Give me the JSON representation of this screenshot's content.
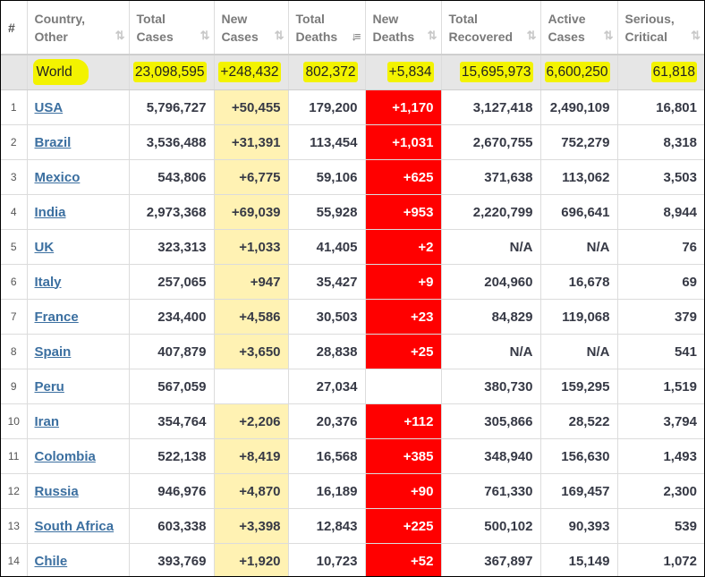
{
  "headers": [
    {
      "label": "#",
      "sortable": false
    },
    {
      "label": "Country,\nOther",
      "sortable": true
    },
    {
      "label": "Total\nCases",
      "sortable": true
    },
    {
      "label": "New\nCases",
      "sortable": true
    },
    {
      "label": "Total\nDeaths",
      "sortable": true,
      "active": true
    },
    {
      "label": "New\nDeaths",
      "sortable": true
    },
    {
      "label": "Total\nRecovered",
      "sortable": true
    },
    {
      "label": "Active\nCases",
      "sortable": true
    },
    {
      "label": "Serious,\nCritical",
      "sortable": true
    }
  ],
  "sort_icon": "⇅",
  "sort_icon_active": "↓≡",
  "world": {
    "country": "World",
    "total_cases": "23,098,595",
    "new_cases": "+248,432",
    "total_deaths": "802,372",
    "new_deaths": "+5,834",
    "total_recovered": "15,695,973",
    "active_cases": "6,600,250",
    "serious_critical": "61,818"
  },
  "rows": [
    {
      "rank": "1",
      "country": "USA",
      "total_cases": "5,796,727",
      "new_cases": "+50,455",
      "total_deaths": "179,200",
      "new_deaths": "+1,170",
      "total_recovered": "3,127,418",
      "active_cases": "2,490,109",
      "serious_critical": "16,801"
    },
    {
      "rank": "2",
      "country": "Brazil",
      "total_cases": "3,536,488",
      "new_cases": "+31,391",
      "total_deaths": "113,454",
      "new_deaths": "+1,031",
      "total_recovered": "2,670,755",
      "active_cases": "752,279",
      "serious_critical": "8,318"
    },
    {
      "rank": "3",
      "country": "Mexico",
      "total_cases": "543,806",
      "new_cases": "+6,775",
      "total_deaths": "59,106",
      "new_deaths": "+625",
      "total_recovered": "371,638",
      "active_cases": "113,062",
      "serious_critical": "3,503"
    },
    {
      "rank": "4",
      "country": "India",
      "total_cases": "2,973,368",
      "new_cases": "+69,039",
      "total_deaths": "55,928",
      "new_deaths": "+953",
      "total_recovered": "2,220,799",
      "active_cases": "696,641",
      "serious_critical": "8,944"
    },
    {
      "rank": "5",
      "country": "UK",
      "total_cases": "323,313",
      "new_cases": "+1,033",
      "total_deaths": "41,405",
      "new_deaths": "+2",
      "total_recovered": "N/A",
      "active_cases": "N/A",
      "serious_critical": "76"
    },
    {
      "rank": "6",
      "country": "Italy",
      "total_cases": "257,065",
      "new_cases": "+947",
      "total_deaths": "35,427",
      "new_deaths": "+9",
      "total_recovered": "204,960",
      "active_cases": "16,678",
      "serious_critical": "69"
    },
    {
      "rank": "7",
      "country": "France",
      "total_cases": "234,400",
      "new_cases": "+4,586",
      "total_deaths": "30,503",
      "new_deaths": "+23",
      "total_recovered": "84,829",
      "active_cases": "119,068",
      "serious_critical": "379"
    },
    {
      "rank": "8",
      "country": "Spain",
      "total_cases": "407,879",
      "new_cases": "+3,650",
      "total_deaths": "28,838",
      "new_deaths": "+25",
      "total_recovered": "N/A",
      "active_cases": "N/A",
      "serious_critical": "541"
    },
    {
      "rank": "9",
      "country": "Peru",
      "total_cases": "567,059",
      "new_cases": "",
      "total_deaths": "27,034",
      "new_deaths": "",
      "total_recovered": "380,730",
      "active_cases": "159,295",
      "serious_critical": "1,519"
    },
    {
      "rank": "10",
      "country": "Iran",
      "total_cases": "354,764",
      "new_cases": "+2,206",
      "total_deaths": "20,376",
      "new_deaths": "+112",
      "total_recovered": "305,866",
      "active_cases": "28,522",
      "serious_critical": "3,794"
    },
    {
      "rank": "11",
      "country": "Colombia",
      "total_cases": "522,138",
      "new_cases": "+8,419",
      "total_deaths": "16,568",
      "new_deaths": "+385",
      "total_recovered": "348,940",
      "active_cases": "156,630",
      "serious_critical": "1,493"
    },
    {
      "rank": "12",
      "country": "Russia",
      "total_cases": "946,976",
      "new_cases": "+4,870",
      "total_deaths": "16,189",
      "new_deaths": "+90",
      "total_recovered": "761,330",
      "active_cases": "169,457",
      "serious_critical": "2,300"
    },
    {
      "rank": "13",
      "country": "South Africa",
      "total_cases": "603,338",
      "new_cases": "+3,398",
      "total_deaths": "12,843",
      "new_deaths": "+225",
      "total_recovered": "500,102",
      "active_cases": "90,393",
      "serious_critical": "539"
    },
    {
      "rank": "14",
      "country": "Chile",
      "total_cases": "393,769",
      "new_cases": "+1,920",
      "total_deaths": "10,723",
      "new_deaths": "+52",
      "total_recovered": "367,897",
      "active_cases": "15,149",
      "serious_critical": "1,072"
    }
  ],
  "colors": {
    "new_cases_bg": "#fff2b3",
    "new_deaths_bg": "#ff0000",
    "highlight": "#f3f300",
    "link": "#3b6fa0"
  }
}
